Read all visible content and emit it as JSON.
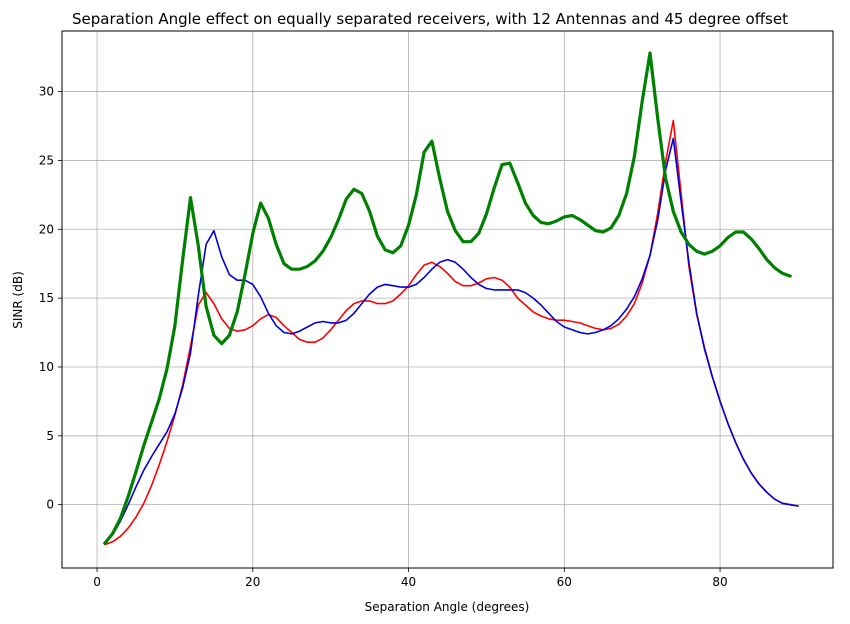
{
  "chart_data": {
    "type": "line",
    "title": "Separation Angle effect on equally separated receivers, with 12 Antennas and 45 degree offset",
    "xlabel": "Separation Angle (degrees)",
    "ylabel": "SINR (dB)",
    "xlim": [
      -4.5,
      94.5
    ],
    "ylim": [
      -4.6,
      34.4
    ],
    "xticks": [
      0,
      20,
      40,
      60,
      80
    ],
    "yticks": [
      0,
      5,
      10,
      15,
      20,
      25,
      30
    ],
    "grid": true,
    "series": [
      {
        "color": "#ff0000",
        "width": 1.6,
        "points": [
          [
            1,
            -2.9
          ],
          [
            2,
            -2.7
          ],
          [
            3,
            -2.3
          ],
          [
            4,
            -1.7
          ],
          [
            5,
            -0.9
          ],
          [
            6,
            0.1
          ],
          [
            7,
            1.4
          ],
          [
            8,
            2.9
          ],
          [
            9,
            4.6
          ],
          [
            10,
            6.5
          ],
          [
            11,
            8.7
          ],
          [
            12,
            11.5
          ],
          [
            13,
            14.5
          ],
          [
            14,
            15.4
          ],
          [
            15,
            14.6
          ],
          [
            16,
            13.5
          ],
          [
            17,
            12.8
          ],
          [
            18,
            12.6
          ],
          [
            19,
            12.7
          ],
          [
            20,
            13.0
          ],
          [
            21,
            13.5
          ],
          [
            22,
            13.8
          ],
          [
            23,
            13.6
          ],
          [
            24,
            13.0
          ],
          [
            25,
            12.5
          ],
          [
            26,
            12.0
          ],
          [
            27,
            11.8
          ],
          [
            28,
            11.8
          ],
          [
            29,
            12.1
          ],
          [
            30,
            12.7
          ],
          [
            31,
            13.4
          ],
          [
            32,
            14.1
          ],
          [
            33,
            14.6
          ],
          [
            34,
            14.8
          ],
          [
            35,
            14.8
          ],
          [
            36,
            14.6
          ],
          [
            37,
            14.6
          ],
          [
            38,
            14.8
          ],
          [
            39,
            15.3
          ],
          [
            40,
            15.9
          ],
          [
            41,
            16.7
          ],
          [
            42,
            17.4
          ],
          [
            43,
            17.6
          ],
          [
            44,
            17.3
          ],
          [
            45,
            16.8
          ],
          [
            46,
            16.2
          ],
          [
            47,
            15.9
          ],
          [
            48,
            15.9
          ],
          [
            49,
            16.1
          ],
          [
            50,
            16.4
          ],
          [
            51,
            16.5
          ],
          [
            52,
            16.3
          ],
          [
            53,
            15.8
          ],
          [
            54,
            15.0
          ],
          [
            55,
            14.5
          ],
          [
            56,
            14.0
          ],
          [
            57,
            13.7
          ],
          [
            58,
            13.5
          ],
          [
            59,
            13.4
          ],
          [
            60,
            13.4
          ],
          [
            61,
            13.3
          ],
          [
            62,
            13.2
          ],
          [
            63,
            13.0
          ],
          [
            64,
            12.8
          ],
          [
            65,
            12.7
          ],
          [
            66,
            12.8
          ],
          [
            67,
            13.1
          ],
          [
            68,
            13.7
          ],
          [
            69,
            14.6
          ],
          [
            70,
            16.1
          ],
          [
            71,
            18.1
          ],
          [
            72,
            21.2
          ],
          [
            73,
            24.9
          ],
          [
            74,
            27.9
          ],
          [
            75,
            22.6
          ],
          [
            76,
            17.3
          ],
          [
            77,
            13.8
          ],
          [
            78,
            11.4
          ],
          [
            79,
            9.3
          ],
          [
            80,
            7.5
          ],
          [
            81,
            5.9
          ],
          [
            82,
            4.5
          ],
          [
            83,
            3.3
          ],
          [
            84,
            2.3
          ],
          [
            85,
            1.5
          ],
          [
            86,
            0.9
          ],
          [
            87,
            0.4
          ],
          [
            88,
            0.1
          ],
          [
            89,
            0.0
          ],
          [
            90,
            -0.1
          ]
        ]
      },
      {
        "color": "#0000dd",
        "width": 1.6,
        "points": [
          [
            1,
            -2.8
          ],
          [
            2,
            -2.2
          ],
          [
            3,
            -1.2
          ],
          [
            4,
            0.0
          ],
          [
            5,
            1.3
          ],
          [
            6,
            2.5
          ],
          [
            7,
            3.5
          ],
          [
            8,
            4.4
          ],
          [
            9,
            5.3
          ],
          [
            10,
            6.6
          ],
          [
            11,
            8.5
          ],
          [
            12,
            11.0
          ],
          [
            13,
            15.2
          ],
          [
            14,
            18.9
          ],
          [
            15,
            19.9
          ],
          [
            16,
            18.0
          ],
          [
            17,
            16.7
          ],
          [
            18,
            16.3
          ],
          [
            19,
            16.3
          ],
          [
            20,
            16.0
          ],
          [
            21,
            15.1
          ],
          [
            22,
            13.9
          ],
          [
            23,
            13.0
          ],
          [
            24,
            12.5
          ],
          [
            25,
            12.4
          ],
          [
            26,
            12.6
          ],
          [
            27,
            12.9
          ],
          [
            28,
            13.2
          ],
          [
            29,
            13.3
          ],
          [
            30,
            13.2
          ],
          [
            31,
            13.2
          ],
          [
            32,
            13.4
          ],
          [
            33,
            13.9
          ],
          [
            34,
            14.6
          ],
          [
            35,
            15.3
          ],
          [
            36,
            15.8
          ],
          [
            37,
            16.0
          ],
          [
            38,
            15.9
          ],
          [
            39,
            15.8
          ],
          [
            40,
            15.8
          ],
          [
            41,
            16.0
          ],
          [
            42,
            16.5
          ],
          [
            43,
            17.1
          ],
          [
            44,
            17.6
          ],
          [
            45,
            17.8
          ],
          [
            46,
            17.6
          ],
          [
            47,
            17.1
          ],
          [
            48,
            16.5
          ],
          [
            49,
            16.0
          ],
          [
            50,
            15.7
          ],
          [
            51,
            15.6
          ],
          [
            52,
            15.6
          ],
          [
            53,
            15.6
          ],
          [
            54,
            15.6
          ],
          [
            55,
            15.4
          ],
          [
            56,
            15.0
          ],
          [
            57,
            14.5
          ],
          [
            58,
            13.9
          ],
          [
            59,
            13.3
          ],
          [
            60,
            12.9
          ],
          [
            61,
            12.7
          ],
          [
            62,
            12.5
          ],
          [
            63,
            12.4
          ],
          [
            64,
            12.5
          ],
          [
            65,
            12.7
          ],
          [
            66,
            13.0
          ],
          [
            67,
            13.5
          ],
          [
            68,
            14.2
          ],
          [
            69,
            15.1
          ],
          [
            70,
            16.4
          ],
          [
            71,
            18.1
          ],
          [
            72,
            20.7
          ],
          [
            73,
            24.3
          ],
          [
            74,
            26.6
          ],
          [
            75,
            22.0
          ],
          [
            76,
            17.6
          ],
          [
            77,
            13.9
          ],
          [
            78,
            11.3
          ],
          [
            79,
            9.3
          ],
          [
            80,
            7.5
          ],
          [
            81,
            5.9
          ],
          [
            82,
            4.5
          ],
          [
            83,
            3.3
          ],
          [
            84,
            2.3
          ],
          [
            85,
            1.5
          ],
          [
            86,
            0.9
          ],
          [
            87,
            0.4
          ],
          [
            88,
            0.1
          ],
          [
            89,
            0.0
          ],
          [
            90,
            -0.1
          ]
        ]
      },
      {
        "color": "#008000",
        "width": 3.2,
        "points": [
          [
            1,
            -2.8
          ],
          [
            2,
            -2.1
          ],
          [
            3,
            -1.0
          ],
          [
            4,
            0.6
          ],
          [
            5,
            2.4
          ],
          [
            6,
            4.3
          ],
          [
            7,
            6.0
          ],
          [
            8,
            7.7
          ],
          [
            9,
            9.9
          ],
          [
            10,
            13.0
          ],
          [
            11,
            17.8
          ],
          [
            12,
            22.3
          ],
          [
            13,
            18.8
          ],
          [
            14,
            14.4
          ],
          [
            15,
            12.3
          ],
          [
            16,
            11.7
          ],
          [
            17,
            12.3
          ],
          [
            18,
            14.0
          ],
          [
            19,
            16.7
          ],
          [
            20,
            19.7
          ],
          [
            21,
            21.9
          ],
          [
            22,
            20.8
          ],
          [
            23,
            18.9
          ],
          [
            24,
            17.5
          ],
          [
            25,
            17.1
          ],
          [
            26,
            17.1
          ],
          [
            27,
            17.3
          ],
          [
            28,
            17.7
          ],
          [
            29,
            18.4
          ],
          [
            30,
            19.4
          ],
          [
            31,
            20.7
          ],
          [
            32,
            22.2
          ],
          [
            33,
            22.9
          ],
          [
            34,
            22.6
          ],
          [
            35,
            21.3
          ],
          [
            36,
            19.5
          ],
          [
            37,
            18.5
          ],
          [
            38,
            18.3
          ],
          [
            39,
            18.8
          ],
          [
            40,
            20.3
          ],
          [
            41,
            22.5
          ],
          [
            42,
            25.6
          ],
          [
            43,
            26.4
          ],
          [
            44,
            23.7
          ],
          [
            45,
            21.3
          ],
          [
            46,
            19.9
          ],
          [
            47,
            19.1
          ],
          [
            48,
            19.1
          ],
          [
            49,
            19.7
          ],
          [
            50,
            21.1
          ],
          [
            51,
            23.0
          ],
          [
            52,
            24.7
          ],
          [
            53,
            24.8
          ],
          [
            54,
            23.4
          ],
          [
            55,
            21.9
          ],
          [
            56,
            21.0
          ],
          [
            57,
            20.5
          ],
          [
            58,
            20.4
          ],
          [
            59,
            20.6
          ],
          [
            60,
            20.9
          ],
          [
            61,
            21.0
          ],
          [
            62,
            20.7
          ],
          [
            63,
            20.3
          ],
          [
            64,
            19.9
          ],
          [
            65,
            19.8
          ],
          [
            66,
            20.1
          ],
          [
            67,
            21.0
          ],
          [
            68,
            22.6
          ],
          [
            69,
            25.3
          ],
          [
            70,
            29.3
          ],
          [
            71,
            32.8
          ],
          [
            72,
            28.0
          ],
          [
            73,
            23.7
          ],
          [
            74,
            21.3
          ],
          [
            75,
            19.8
          ],
          [
            76,
            18.9
          ],
          [
            77,
            18.4
          ],
          [
            78,
            18.2
          ],
          [
            79,
            18.4
          ],
          [
            80,
            18.8
          ],
          [
            81,
            19.4
          ],
          [
            82,
            19.8
          ],
          [
            83,
            19.8
          ],
          [
            84,
            19.3
          ],
          [
            85,
            18.6
          ],
          [
            86,
            17.8
          ],
          [
            87,
            17.2
          ],
          [
            88,
            16.8
          ],
          [
            89,
            16.6
          ]
        ]
      }
    ]
  }
}
